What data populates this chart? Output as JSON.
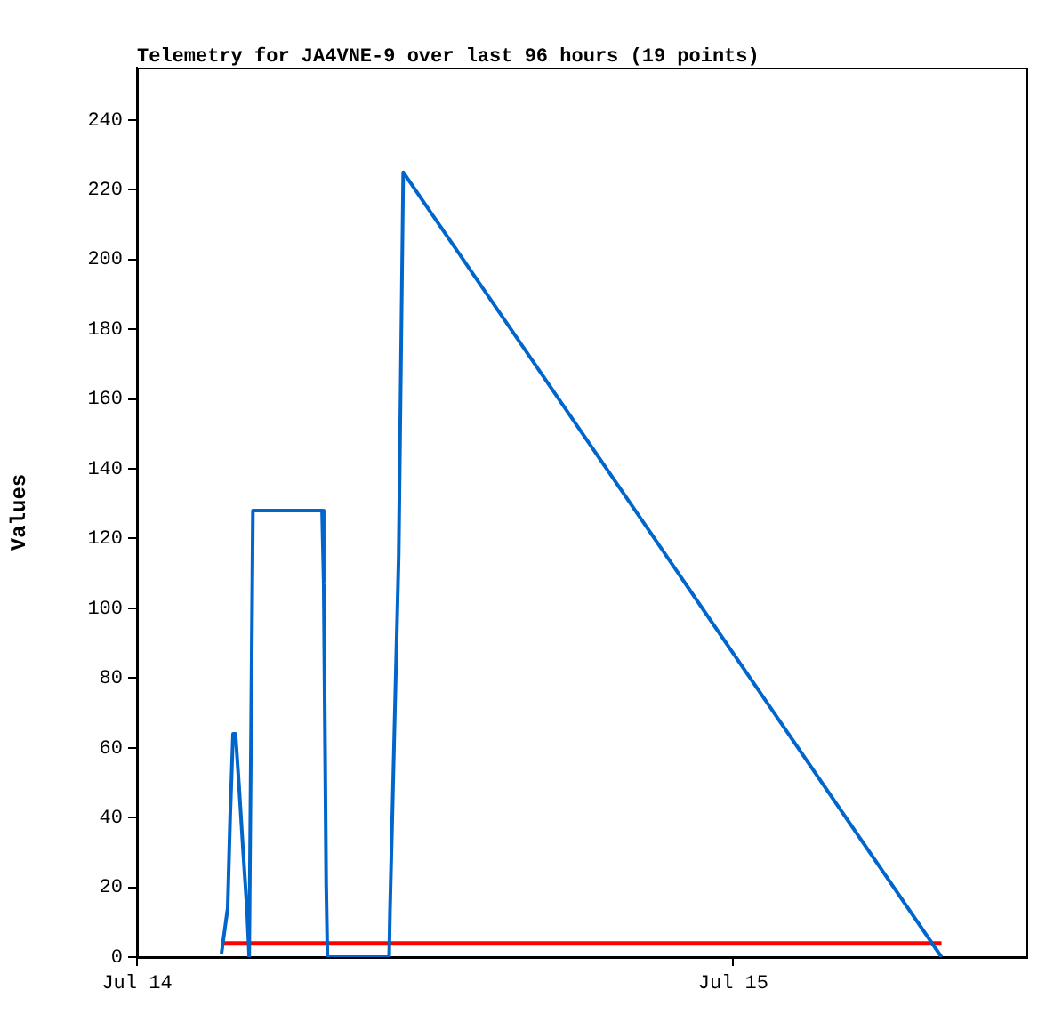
{
  "chart_data": {
    "type": "line",
    "title": "Telemetry for JA4VNE-9 over last 96 hours (19 points)",
    "ylabel": "Values",
    "xlim": [
      "--07-14T00:00",
      "--07-15T11:48"
    ],
    "xticks": [
      {
        "value": "--07-14",
        "label": "Jul 14"
      },
      {
        "value": "--07-15",
        "label": "Jul 15"
      }
    ],
    "ylim": [
      0,
      255
    ],
    "yticks": [
      0,
      20,
      40,
      60,
      80,
      100,
      120,
      140,
      160,
      180,
      200,
      220,
      240
    ],
    "grid": false,
    "legend": false,
    "marker": "none",
    "line_style": "solid",
    "series": [
      {
        "color": "#0066cc",
        "x": [
          "--07-14T03:24",
          "--07-14T03:39",
          "--07-14T03:45",
          "--07-14T03:52",
          "--07-14T03:58",
          "--07-14T04:06",
          "--07-14T04:16",
          "--07-14T04:26",
          "--07-14T04:31",
          "--07-14T04:40",
          "--07-14T07:27",
          "--07-14T07:31",
          "--07-14T07:37",
          "--07-14T07:40",
          "--07-14T10:09",
          "--07-14T10:11",
          "--07-14T10:32",
          "--07-14T10:43",
          "--07-15T08:23"
        ],
        "values": [
          1,
          14,
          40,
          64,
          64,
          50,
          31,
          13,
          0,
          128,
          128,
          107,
          21,
          0,
          0,
          13,
          115,
          225,
          0
        ]
      },
      {
        "color": "#ff0000",
        "x": [
          "--07-14T03:24",
          "--07-15T08:23"
        ],
        "values": [
          4,
          4
        ]
      }
    ]
  }
}
